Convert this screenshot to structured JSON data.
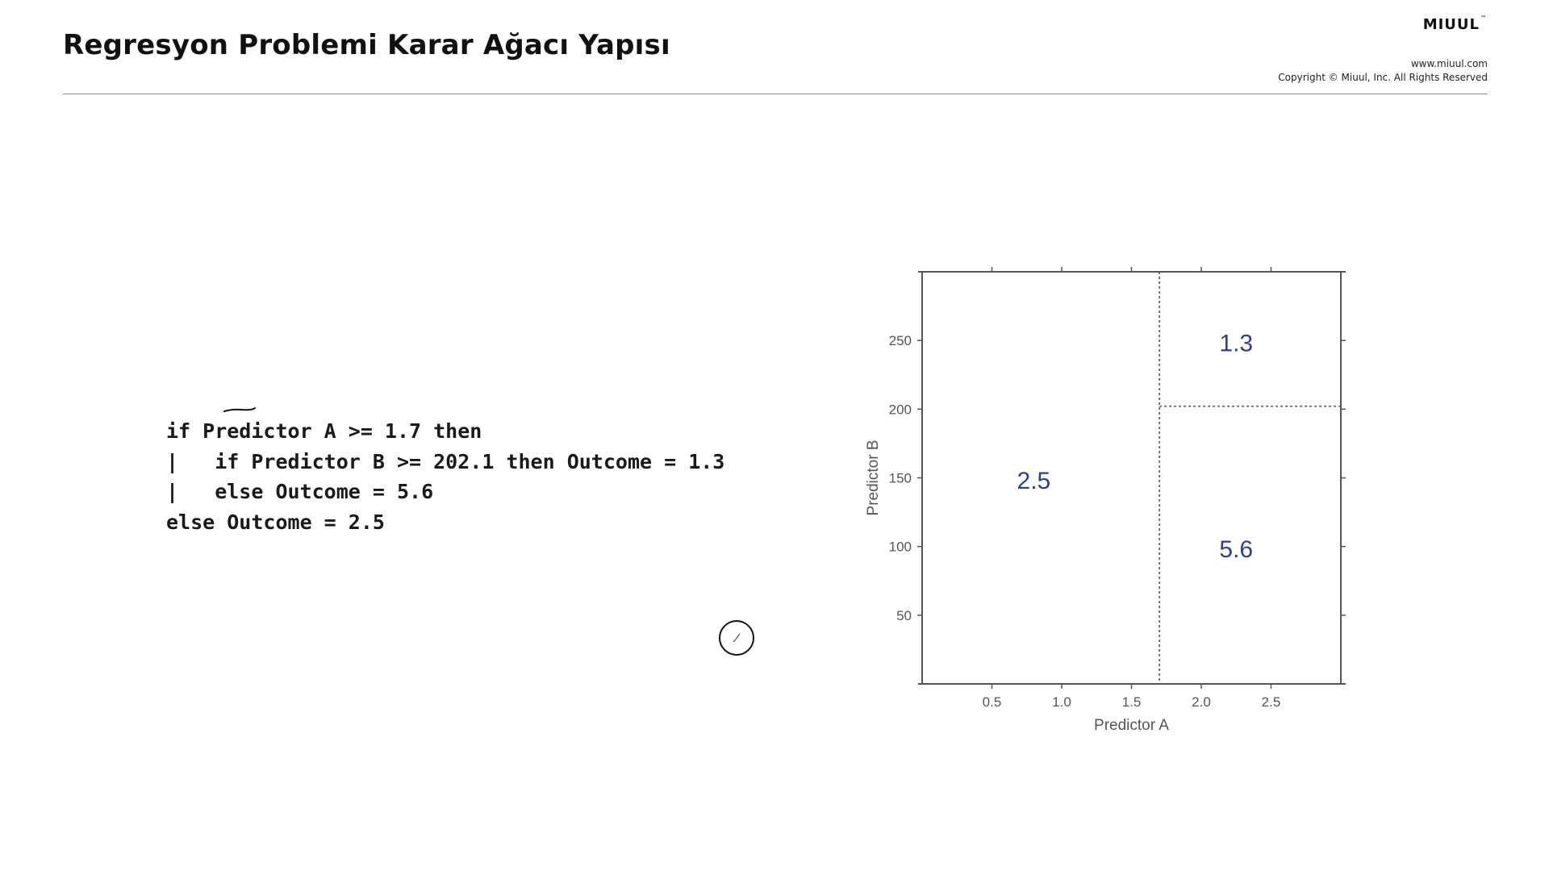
{
  "slide": {
    "title": "Regresyon Problemi Karar Ağacı Yapısı"
  },
  "brand": {
    "name": "MIUUL",
    "trademark": "™",
    "website": "www.miuul.com",
    "copyright": "Copyright © Miuul, Inc. All Rights Reserved"
  },
  "code": {
    "lines": [
      "if Predictor A >= 1.7 then",
      "|   if Predictor B >= 202.1 then Outcome = 1.3",
      "|   else Outcome = 5.6",
      "else Outcome = 2.5"
    ]
  },
  "icons": {
    "cursor": "pen-cursor-icon",
    "mark": "pen-stroke-icon"
  },
  "chart_data": {
    "type": "partition",
    "xlabel": "Predictor A",
    "ylabel": "Predictor B",
    "xlim": [
      0,
      3.0
    ],
    "ylim": [
      0,
      300
    ],
    "xticks": [
      0.5,
      1.0,
      1.5,
      2.0,
      2.5
    ],
    "xtick_labels": [
      "0.5",
      "1.0",
      "1.5",
      "2.0",
      "2.5"
    ],
    "yticks": [
      50,
      100,
      150,
      200,
      250
    ],
    "ytick_labels": [
      "50",
      "100",
      "150",
      "200",
      "250"
    ],
    "splits": [
      {
        "axis": "x",
        "value": 1.7,
        "from": 0,
        "to": 300
      },
      {
        "axis": "y",
        "value": 202.1,
        "from": 1.7,
        "to": 3.0
      }
    ],
    "regions": [
      {
        "label": "2.5",
        "x": 0.8,
        "y": 148
      },
      {
        "label": "1.3",
        "x": 2.25,
        "y": 248
      },
      {
        "label": "5.6",
        "x": 2.25,
        "y": 98
      }
    ],
    "label_color": "#2e3f8f",
    "axis_color": "#555555",
    "grid": false
  }
}
